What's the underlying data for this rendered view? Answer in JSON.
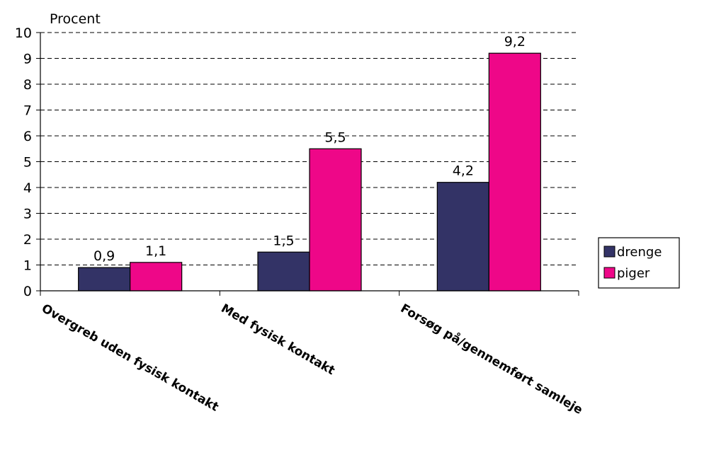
{
  "chart_data": {
    "type": "bar",
    "ylabel": "Procent",
    "ylim": [
      0,
      10
    ],
    "yticks": [
      0,
      1,
      2,
      3,
      4,
      5,
      6,
      7,
      8,
      9,
      10
    ],
    "grid": "dashed horizontal",
    "legend_position": "right",
    "categories": [
      "Overgreb uden fysisk kontakt",
      "Med fysisk kontakt",
      "Forsøg på/gennemført samleje"
    ],
    "series": [
      {
        "name": "drenge",
        "color": "#333366",
        "values": [
          0.9,
          1.5,
          4.2
        ],
        "labels": [
          "0,9",
          "1,5",
          "4,2"
        ]
      },
      {
        "name": "piger",
        "color": "#ee0788",
        "values": [
          1.1,
          5.5,
          9.2
        ],
        "labels": [
          "1,1",
          "5,5",
          "9,2"
        ]
      }
    ]
  }
}
